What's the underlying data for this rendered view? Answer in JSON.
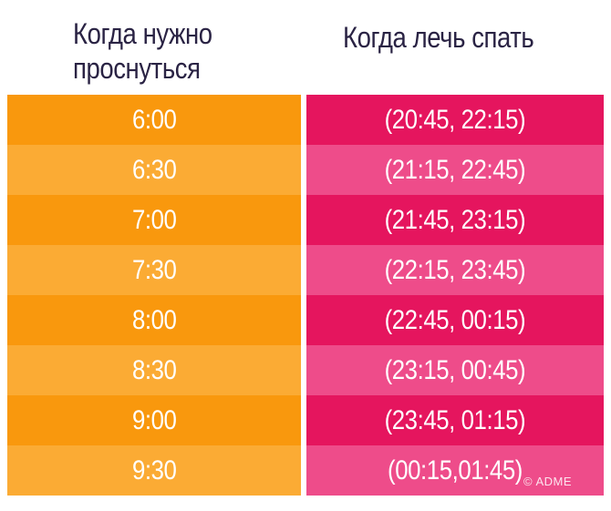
{
  "header": {
    "left_title": "Когда нужно проснуться",
    "right_title": "Когда лечь спать"
  },
  "rows": [
    {
      "wake": "6:00",
      "sleep": "(20:45, 22:15)"
    },
    {
      "wake": "6:30",
      "sleep": "(21:15, 22:45)"
    },
    {
      "wake": "7:00",
      "sleep": "(21:45, 23:15)"
    },
    {
      "wake": "7:30",
      "sleep": "(22:15, 23:45)"
    },
    {
      "wake": "8:00",
      "sleep": "(22:45, 00:15)"
    },
    {
      "wake": "8:30",
      "sleep": "(23:15, 00:45)"
    },
    {
      "wake": "9:00",
      "sleep": "(23:45, 01:15)"
    },
    {
      "wake": "9:30",
      "sleep": "(00:15,01:45)"
    }
  ],
  "watermark": "© ADME",
  "colors": {
    "orange_dark": "#f9980d",
    "orange_light": "#fbab34",
    "pink_dark": "#e5155e",
    "pink_light": "#ee4c8a",
    "header_text": "#2a2344"
  }
}
